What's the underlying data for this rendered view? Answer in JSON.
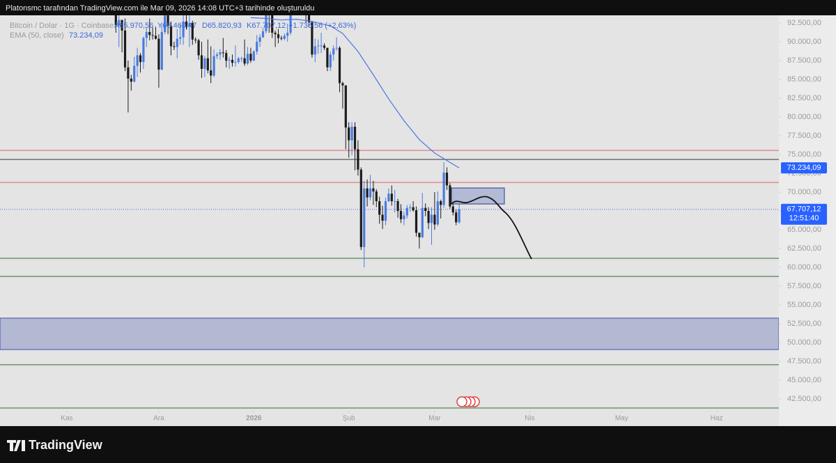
{
  "header": {
    "attribution": "Platonsmc tarafından TradingView.com ile Mar 09, 2026 14:08 UTC+3 tarihinde oluşturuldu"
  },
  "legend": {
    "symbol": "Bitcoin / Dolar · 1G · Coinbase",
    "open": "A65.970,56",
    "high": "Y68.460,47",
    "low": "D65.820,93",
    "close": "K67.707,12",
    "change": "+1.736,56 (+2,63%)",
    "ema_name": "EMA (50, close)",
    "ema_value": "73.234,09"
  },
  "footer": {
    "brand": "TradingView"
  },
  "chart_data": {
    "type": "candlestick",
    "up_color": "#4a7be0",
    "down_color": "#1c1c1c",
    "x": [
      15,
      16,
      17,
      18,
      19,
      20,
      21,
      22,
      23,
      24,
      25,
      26,
      27,
      28,
      29,
      30,
      31,
      32,
      33,
      34,
      35,
      36,
      37,
      38,
      39,
      40,
      41,
      42,
      43,
      44,
      45,
      46,
      47,
      48,
      49,
      50,
      51,
      52,
      53,
      54,
      55,
      56,
      57,
      58,
      59,
      60,
      61,
      62,
      63,
      64,
      65,
      66,
      67,
      68,
      69,
      70,
      71,
      72,
      73,
      74,
      75,
      76,
      77,
      78,
      79,
      80,
      81,
      82,
      83,
      84,
      85,
      86,
      87,
      88,
      89,
      90,
      91,
      92,
      93,
      94,
      95,
      96,
      97,
      98,
      99,
      100,
      101,
      102,
      103,
      104,
      105,
      106,
      107,
      108,
      109,
      110,
      111,
      112,
      113,
      114,
      115,
      116,
      117,
      118,
      119,
      120,
      121,
      122,
      123,
      124,
      125,
      126,
      127,
      128
    ],
    "open": [
      95500,
      94500,
      92200,
      92900,
      91500,
      86600,
      85100,
      84700,
      86800,
      88200,
      87300,
      90500,
      91300,
      90900,
      90800,
      90400,
      86300,
      91300,
      93500,
      92100,
      89400,
      89300,
      90400,
      90600,
      92700,
      92000,
      92500,
      90300,
      90200,
      88200,
      86400,
      87800,
      86200,
      85500,
      88100,
      88300,
      88600,
      88500,
      87500,
      87600,
      87200,
      87300,
      87800,
      87800,
      87100,
      88400,
      87500,
      88700,
      90000,
      90600,
      91400,
      93800,
      93700,
      91200,
      91000,
      90500,
      90400,
      90800,
      91200,
      95300,
      97000,
      95500,
      95500,
      95100,
      93600,
      92600,
      88300,
      89400,
      89500,
      89500,
      89200,
      86600,
      88300,
      89100,
      89200,
      84500,
      84200,
      78600,
      76900,
      78700,
      75700,
      73000,
      62700,
      70500,
      69300,
      70500,
      70100,
      68800,
      67000,
      66200,
      68800,
      69800,
      68800,
      68800,
      67500,
      66400,
      66900,
      67900,
      68000,
      67600,
      64600,
      64000,
      67900,
      67500,
      65900,
      67000,
      65700,
      68800,
      68300,
      72600,
      70900,
      68100,
      67300,
      65970.56
    ],
    "high": [
      96500,
      95000,
      93800,
      92900,
      93100,
      87500,
      85600,
      88000,
      89200,
      88500,
      90700,
      91900,
      93100,
      91900,
      92000,
      91000,
      92300,
      94100,
      94000,
      92700,
      90000,
      91700,
      92300,
      94600,
      94500,
      93500,
      92800,
      90600,
      90400,
      90000,
      88100,
      90300,
      89400,
      89000,
      88600,
      89000,
      90500,
      88900,
      88000,
      88300,
      89500,
      88000,
      88000,
      90300,
      89300,
      89200,
      88900,
      90900,
      91000,
      91800,
      94700,
      94400,
      93700,
      91500,
      91700,
      90800,
      91100,
      92400,
      96400,
      97900,
      97200,
      95700,
      95600,
      95500,
      93700,
      92800,
      90400,
      90300,
      91200,
      89800,
      89200,
      88700,
      89500,
      90600,
      89400,
      84700,
      84200,
      79300,
      79300,
      79300,
      76900,
      73300,
      71500,
      71700,
      72300,
      71500,
      70400,
      69400,
      68200,
      69300,
      70500,
      70900,
      70300,
      69100,
      68400,
      67400,
      68300,
      68400,
      68800,
      68100,
      64600,
      69900,
      68500,
      68000,
      68000,
      70000,
      70100,
      69000,
      74000,
      73300,
      71200,
      68400,
      67700,
      68460.47
    ],
    "low": [
      93800,
      91200,
      89300,
      88600,
      86100,
      80600,
      83500,
      84600,
      85300,
      85900,
      86400,
      89300,
      90200,
      90300,
      90300,
      83900,
      86200,
      91000,
      91000,
      88200,
      88900,
      87800,
      89600,
      89600,
      91600,
      89300,
      89600,
      89800,
      87600,
      85200,
      85300,
      85800,
      84500,
      85300,
      87700,
      87600,
      87900,
      86600,
      86400,
      86700,
      86700,
      87100,
      87300,
      86800,
      86900,
      87200,
      87400,
      88300,
      89300,
      90500,
      91100,
      91200,
      90500,
      89300,
      89800,
      90200,
      90200,
      90000,
      90900,
      94200,
      94900,
      94300,
      94900,
      92500,
      91900,
      87900,
      87300,
      88400,
      88500,
      88900,
      86100,
      86100,
      87500,
      88800,
      83300,
      81100,
      75700,
      74600,
      74900,
      72900,
      72200,
      62300,
      60000,
      68100,
      68900,
      68300,
      68000,
      65800,
      65100,
      65600,
      68700,
      68200,
      67300,
      66600,
      65900,
      65600,
      66500,
      67400,
      67400,
      64100,
      62500,
      63900,
      66800,
      65100,
      63000,
      65000,
      65500,
      66500,
      67900,
      70300,
      67800,
      66900,
      65600,
      65820.93
    ],
    "close": [
      94500,
      92200,
      92900,
      91500,
      86600,
      85100,
      84700,
      86800,
      88200,
      87300,
      90500,
      91300,
      90900,
      90800,
      90400,
      86300,
      91300,
      93500,
      92100,
      89400,
      89300,
      90400,
      90600,
      92700,
      92000,
      92500,
      90300,
      90200,
      88200,
      86400,
      87800,
      86200,
      85500,
      88100,
      88300,
      88600,
      88500,
      87500,
      87600,
      87200,
      87300,
      87800,
      87800,
      87100,
      88400,
      87500,
      88700,
      90000,
      90600,
      91400,
      93800,
      93700,
      91200,
      91000,
      90500,
      90400,
      90800,
      91200,
      95300,
      97000,
      95500,
      95500,
      95100,
      93600,
      92600,
      88300,
      89400,
      89500,
      89500,
      89200,
      86600,
      88300,
      89100,
      89200,
      84500,
      84200,
      78600,
      76900,
      78700,
      75700,
      73000,
      62700,
      70500,
      69300,
      70500,
      70100,
      68800,
      67000,
      66200,
      68800,
      69800,
      68800,
      68800,
      67500,
      66400,
      66900,
      67900,
      68000,
      67600,
      64600,
      64000,
      67900,
      67500,
      65900,
      67000,
      65700,
      68800,
      68300,
      72600,
      70900,
      68100,
      67300,
      66000,
      67707.12
    ],
    "ema": {
      "color": "#4a78e0",
      "x": [
        60,
        65,
        70,
        75,
        80,
        86,
        90,
        95,
        100,
        105,
        110,
        115,
        120,
        124,
        128
      ],
      "values": [
        93200,
        93100,
        92900,
        93000,
        92700,
        92100,
        91100,
        88700,
        85600,
        82400,
        79500,
        77000,
        75200,
        74200,
        73234.09
      ]
    },
    "levels": [
      {
        "value": 75550,
        "color": "#e06060"
      },
      {
        "value": 74350,
        "color": "#333333"
      },
      {
        "value": 71300,
        "color": "#e06060"
      },
      {
        "value": 61200,
        "color": "#2e6b34"
      },
      {
        "value": 58800,
        "color": "#2e6b34"
      },
      {
        "value": 47050,
        "color": "#2e6b34"
      },
      {
        "value": 41300,
        "color": "#2e6b34"
      }
    ],
    "zone": {
      "range": [
        49070,
        53250
      ],
      "color": "#b3b8d3",
      "border": "#3f4fb0"
    },
    "ema_badge": {
      "value": 73234.09,
      "label": "73.234,09"
    },
    "last_price": {
      "value": 67707.12,
      "label": "67.707,12",
      "countdown": "12:51:40"
    },
    "xlim": [
      -21.8,
      232.3
    ],
    "ylim": [
      40926,
      93518
    ],
    "xticks": [
      {
        "value": 0,
        "label": "Kas"
      },
      {
        "value": 30,
        "label": "Ara"
      },
      {
        "value": 61,
        "label": "2026"
      },
      {
        "value": 92,
        "label": "Şub"
      },
      {
        "value": 120,
        "label": "Mar"
      },
      {
        "value": 151,
        "label": "Nis"
      },
      {
        "value": 181,
        "label": "May"
      },
      {
        "value": 212,
        "label": "Haz"
      }
    ],
    "yticks": [
      {
        "value": 42500,
        "label": "42.500,00"
      },
      {
        "value": 45000,
        "label": "45.000,00"
      },
      {
        "value": 47500,
        "label": "47.500,00"
      },
      {
        "value": 50000,
        "label": "50.000,00"
      },
      {
        "value": 52500,
        "label": "52.500,00"
      },
      {
        "value": 55000,
        "label": "55.000,00"
      },
      {
        "value": 57500,
        "label": "57.500,00"
      },
      {
        "value": 60000,
        "label": "60.000,00"
      },
      {
        "value": 62500,
        "label": "62.500,00"
      },
      {
        "value": 65000,
        "label": "65.000,00"
      },
      {
        "value": 67500,
        "label": "67.500,00"
      },
      {
        "value": 70000,
        "label": "70.000,00"
      },
      {
        "value": 72500,
        "label": "72.500,00"
      },
      {
        "value": 75000,
        "label": "75.000,00"
      },
      {
        "value": 77500,
        "label": "77.500,00"
      },
      {
        "value": 80000,
        "label": "80.000,00"
      },
      {
        "value": 82500,
        "label": "82.500,00"
      },
      {
        "value": 85000,
        "label": "85.000,00"
      },
      {
        "value": 87500,
        "label": "87.500,00"
      },
      {
        "value": 90000,
        "label": "90.000,00"
      },
      {
        "value": 92500,
        "label": "92.500,00"
      }
    ]
  }
}
